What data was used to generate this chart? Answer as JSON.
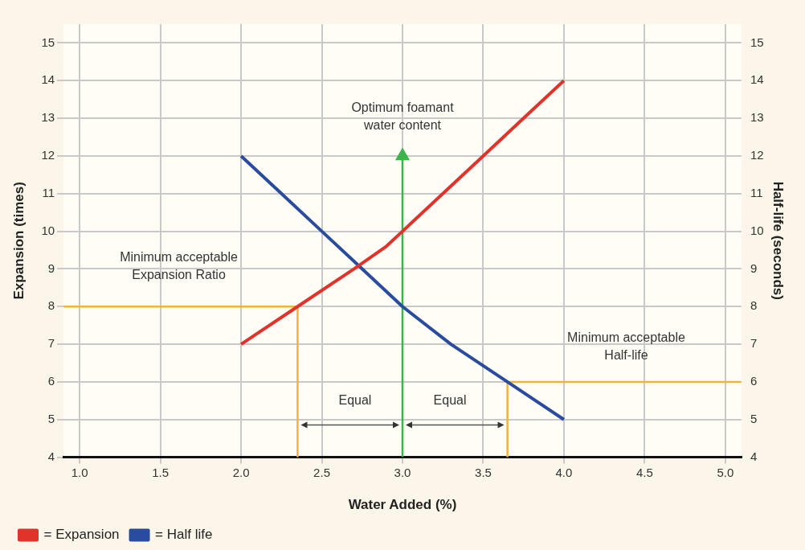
{
  "chart_data": {
    "type": "line",
    "xlabel": "Water Added (%)",
    "ylabel": "Expansion (times)",
    "y2label": "Half-life (seconds)",
    "xlim": [
      0.9,
      5.1
    ],
    "xticks": [
      {
        "value": 1,
        "label": "1.0"
      },
      {
        "value": 1.5,
        "label": "1.5"
      },
      {
        "value": 2,
        "label": "2.0"
      },
      {
        "value": 2.5,
        "label": "2.5"
      },
      {
        "value": 3,
        "label": "3.0"
      },
      {
        "value": 3.5,
        "label": "3.5"
      },
      {
        "value": 4,
        "label": "4.0"
      },
      {
        "value": 4.5,
        "label": "4.5"
      },
      {
        "value": 5,
        "label": "5.0"
      }
    ],
    "ylim": [
      4,
      15.5
    ],
    "yticks": [
      4,
      5,
      6,
      7,
      8,
      9,
      10,
      11,
      12,
      13,
      14,
      15
    ],
    "y2lim": [
      4,
      15.5
    ],
    "y2ticks": [
      4,
      5,
      6,
      7,
      8,
      9,
      10,
      11,
      12,
      13,
      14,
      15
    ],
    "grid": true,
    "legend": "bottom left",
    "marker": "none",
    "line_style": "solid",
    "series": [
      {
        "name": "= Expansion",
        "color": "#e0342a",
        "x": [
          2.0,
          2.35,
          2.7,
          2.9,
          3.0,
          3.25,
          3.5,
          3.75,
          4.0
        ],
        "values": [
          7,
          8,
          9,
          9.6,
          10,
          11,
          12,
          13,
          14
        ]
      },
      {
        "name": "= Half life",
        "color": "#2a4c9e",
        "axis": "y2",
        "x": [
          2.0,
          2.25,
          2.5,
          2.7,
          3.0,
          3.3,
          3.65,
          4.0
        ],
        "values": [
          12,
          11,
          10,
          9.2,
          8,
          7,
          6,
          5
        ]
      },
      {
        "color": "#f0b43c",
        "x": [
          0.9,
          2.35,
          2.35
        ],
        "values": [
          8,
          8,
          4
        ]
      },
      {
        "color": "#f0b43c",
        "x": [
          5.1,
          3.65,
          3.65
        ],
        "values": [
          6,
          6,
          4
        ]
      },
      {
        "color": "#3ab54a",
        "marker": "triangle",
        "x": [
          3,
          3
        ],
        "values": [
          4,
          12
        ]
      }
    ],
    "annotations": [
      "Minimum acceptable\nExpansion Ratio",
      "Optimum foamant\nwater content",
      "Minimum acceptable\nHalf-life",
      "Equal",
      "Equal"
    ]
  }
}
